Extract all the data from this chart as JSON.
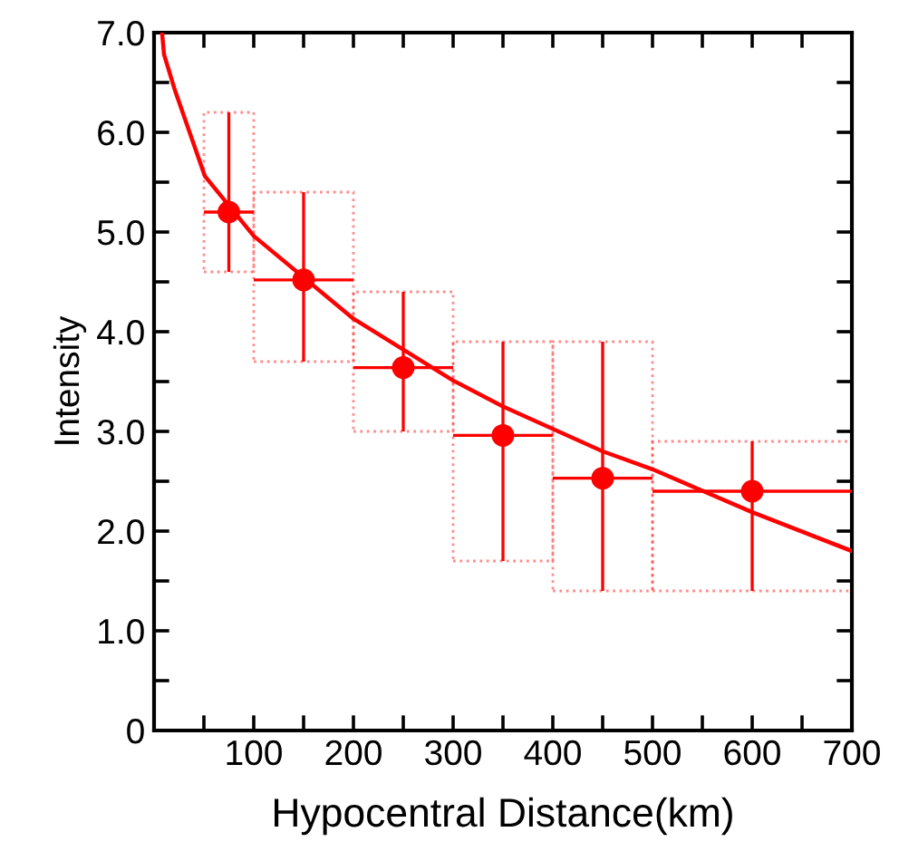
{
  "chart_data": {
    "type": "scatter",
    "xlabel": "Hypocentral Distance(km)",
    "ylabel": "Intensity",
    "xlim": [
      0,
      700
    ],
    "ylim": [
      0,
      7
    ],
    "xticks": [
      {
        "value": 50,
        "label": null
      },
      100,
      {
        "value": 150,
        "label": null
      },
      200,
      {
        "value": 250,
        "label": null
      },
      300,
      {
        "value": 350,
        "label": null
      },
      400,
      {
        "value": 450,
        "label": null
      },
      500,
      {
        "value": 550,
        "label": null
      },
      600,
      {
        "value": 650,
        "label": null
      },
      700
    ],
    "yticks": [
      0,
      {
        "value": 0.5,
        "label": null
      },
      {
        "value": 1,
        "label": "1.0"
      },
      {
        "value": 1.5,
        "label": null
      },
      {
        "value": 2,
        "label": "2.0"
      },
      {
        "value": 2.5,
        "label": null
      },
      {
        "value": 3,
        "label": "3.0"
      },
      {
        "value": 3.5,
        "label": null
      },
      {
        "value": 4,
        "label": "4.0"
      },
      {
        "value": 4.5,
        "label": null
      },
      {
        "value": 5,
        "label": "5.0"
      },
      {
        "value": 5.5,
        "label": null
      },
      {
        "value": 6,
        "label": "6.0"
      },
      {
        "value": 6.5,
        "label": null
      },
      {
        "value": 7,
        "label": "7.0"
      }
    ],
    "grid": false,
    "legend": false,
    "series": [
      {
        "color": "#ff0000",
        "marker": "circle",
        "x": [
          75,
          150,
          250,
          350,
          450,
          600
        ],
        "values": [
          5.2,
          4.52,
          3.64,
          2.96,
          2.53,
          2.4
        ],
        "errors": [
          [
            4.6,
            6.2
          ],
          [
            3.7,
            5.4
          ],
          [
            3.0,
            4.4
          ],
          [
            1.7,
            3.9
          ],
          [
            1.4,
            3.9
          ],
          [
            1.4,
            2.9
          ]
        ],
        "xerrors": [
          [
            50,
            100
          ],
          [
            100,
            200
          ],
          [
            200,
            300
          ],
          [
            300,
            400
          ],
          [
            400,
            500
          ],
          [
            500,
            700
          ]
        ]
      },
      {
        "type": "line",
        "color": "#ff0000",
        "line_style": "solid",
        "marker": "none",
        "x": [
          8,
          10,
          21,
          51,
          100,
          200,
          300,
          350,
          450,
          500,
          600,
          700
        ],
        "values": [
          7.0,
          6.78,
          6.42,
          5.56,
          4.96,
          4.13,
          3.51,
          3.25,
          2.8,
          2.62,
          2.19,
          1.8
        ]
      }
    ]
  }
}
